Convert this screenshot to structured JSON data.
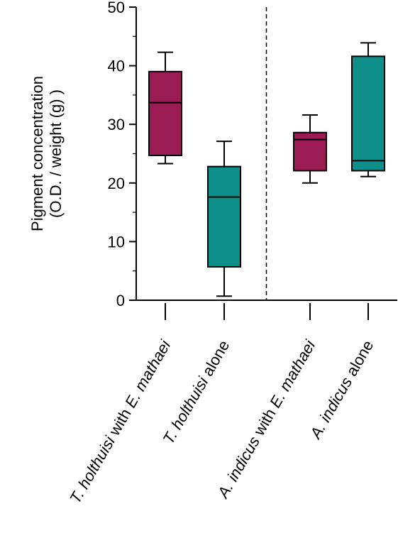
{
  "chart_data": {
    "type": "box",
    "ylabel_lines": [
      "Pigment concentration",
      "(O.D. / weight (g) )"
    ],
    "ylim": [
      0,
      50
    ],
    "yticks": [
      0,
      10,
      20,
      30,
      40,
      50
    ],
    "grid": false,
    "boxes": [
      {
        "label_parts": [
          {
            "text": "T. holthuisi",
            "italic": true
          },
          {
            "text": " with ",
            "italic": false
          },
          {
            "text": "E. mathaei",
            "italic": true
          }
        ],
        "whisker_low": 23.3,
        "q1": 24.7,
        "median": 33.7,
        "q3": 39.0,
        "whisker_high": 42.3,
        "color": "#9b1b55"
      },
      {
        "label_parts": [
          {
            "text": "T. holthuisi",
            "italic": true
          },
          {
            "text": " alone",
            "italic": false
          }
        ],
        "whisker_low": 0.7,
        "q1": 5.7,
        "median": 17.6,
        "q3": 22.8,
        "whisker_high": 27.1,
        "color": "#0e8f8a"
      },
      {
        "label_parts": [
          {
            "text": "A. indicus",
            "italic": true
          },
          {
            "text": " with ",
            "italic": false
          },
          {
            "text": "E. mathaei",
            "italic": true
          }
        ],
        "whisker_low": 20.0,
        "q1": 22.1,
        "median": 27.4,
        "q3": 28.6,
        "whisker_high": 31.6,
        "color": "#9b1b55"
      },
      {
        "label_parts": [
          {
            "text": "A. indicus",
            "italic": true
          },
          {
            "text": " alone",
            "italic": false
          }
        ],
        "whisker_low": 21.1,
        "q1": 22.1,
        "median": 23.8,
        "q3": 41.6,
        "whisker_high": 43.9,
        "color": "#0e8f8a"
      }
    ],
    "divider_between": [
      1,
      2
    ]
  }
}
